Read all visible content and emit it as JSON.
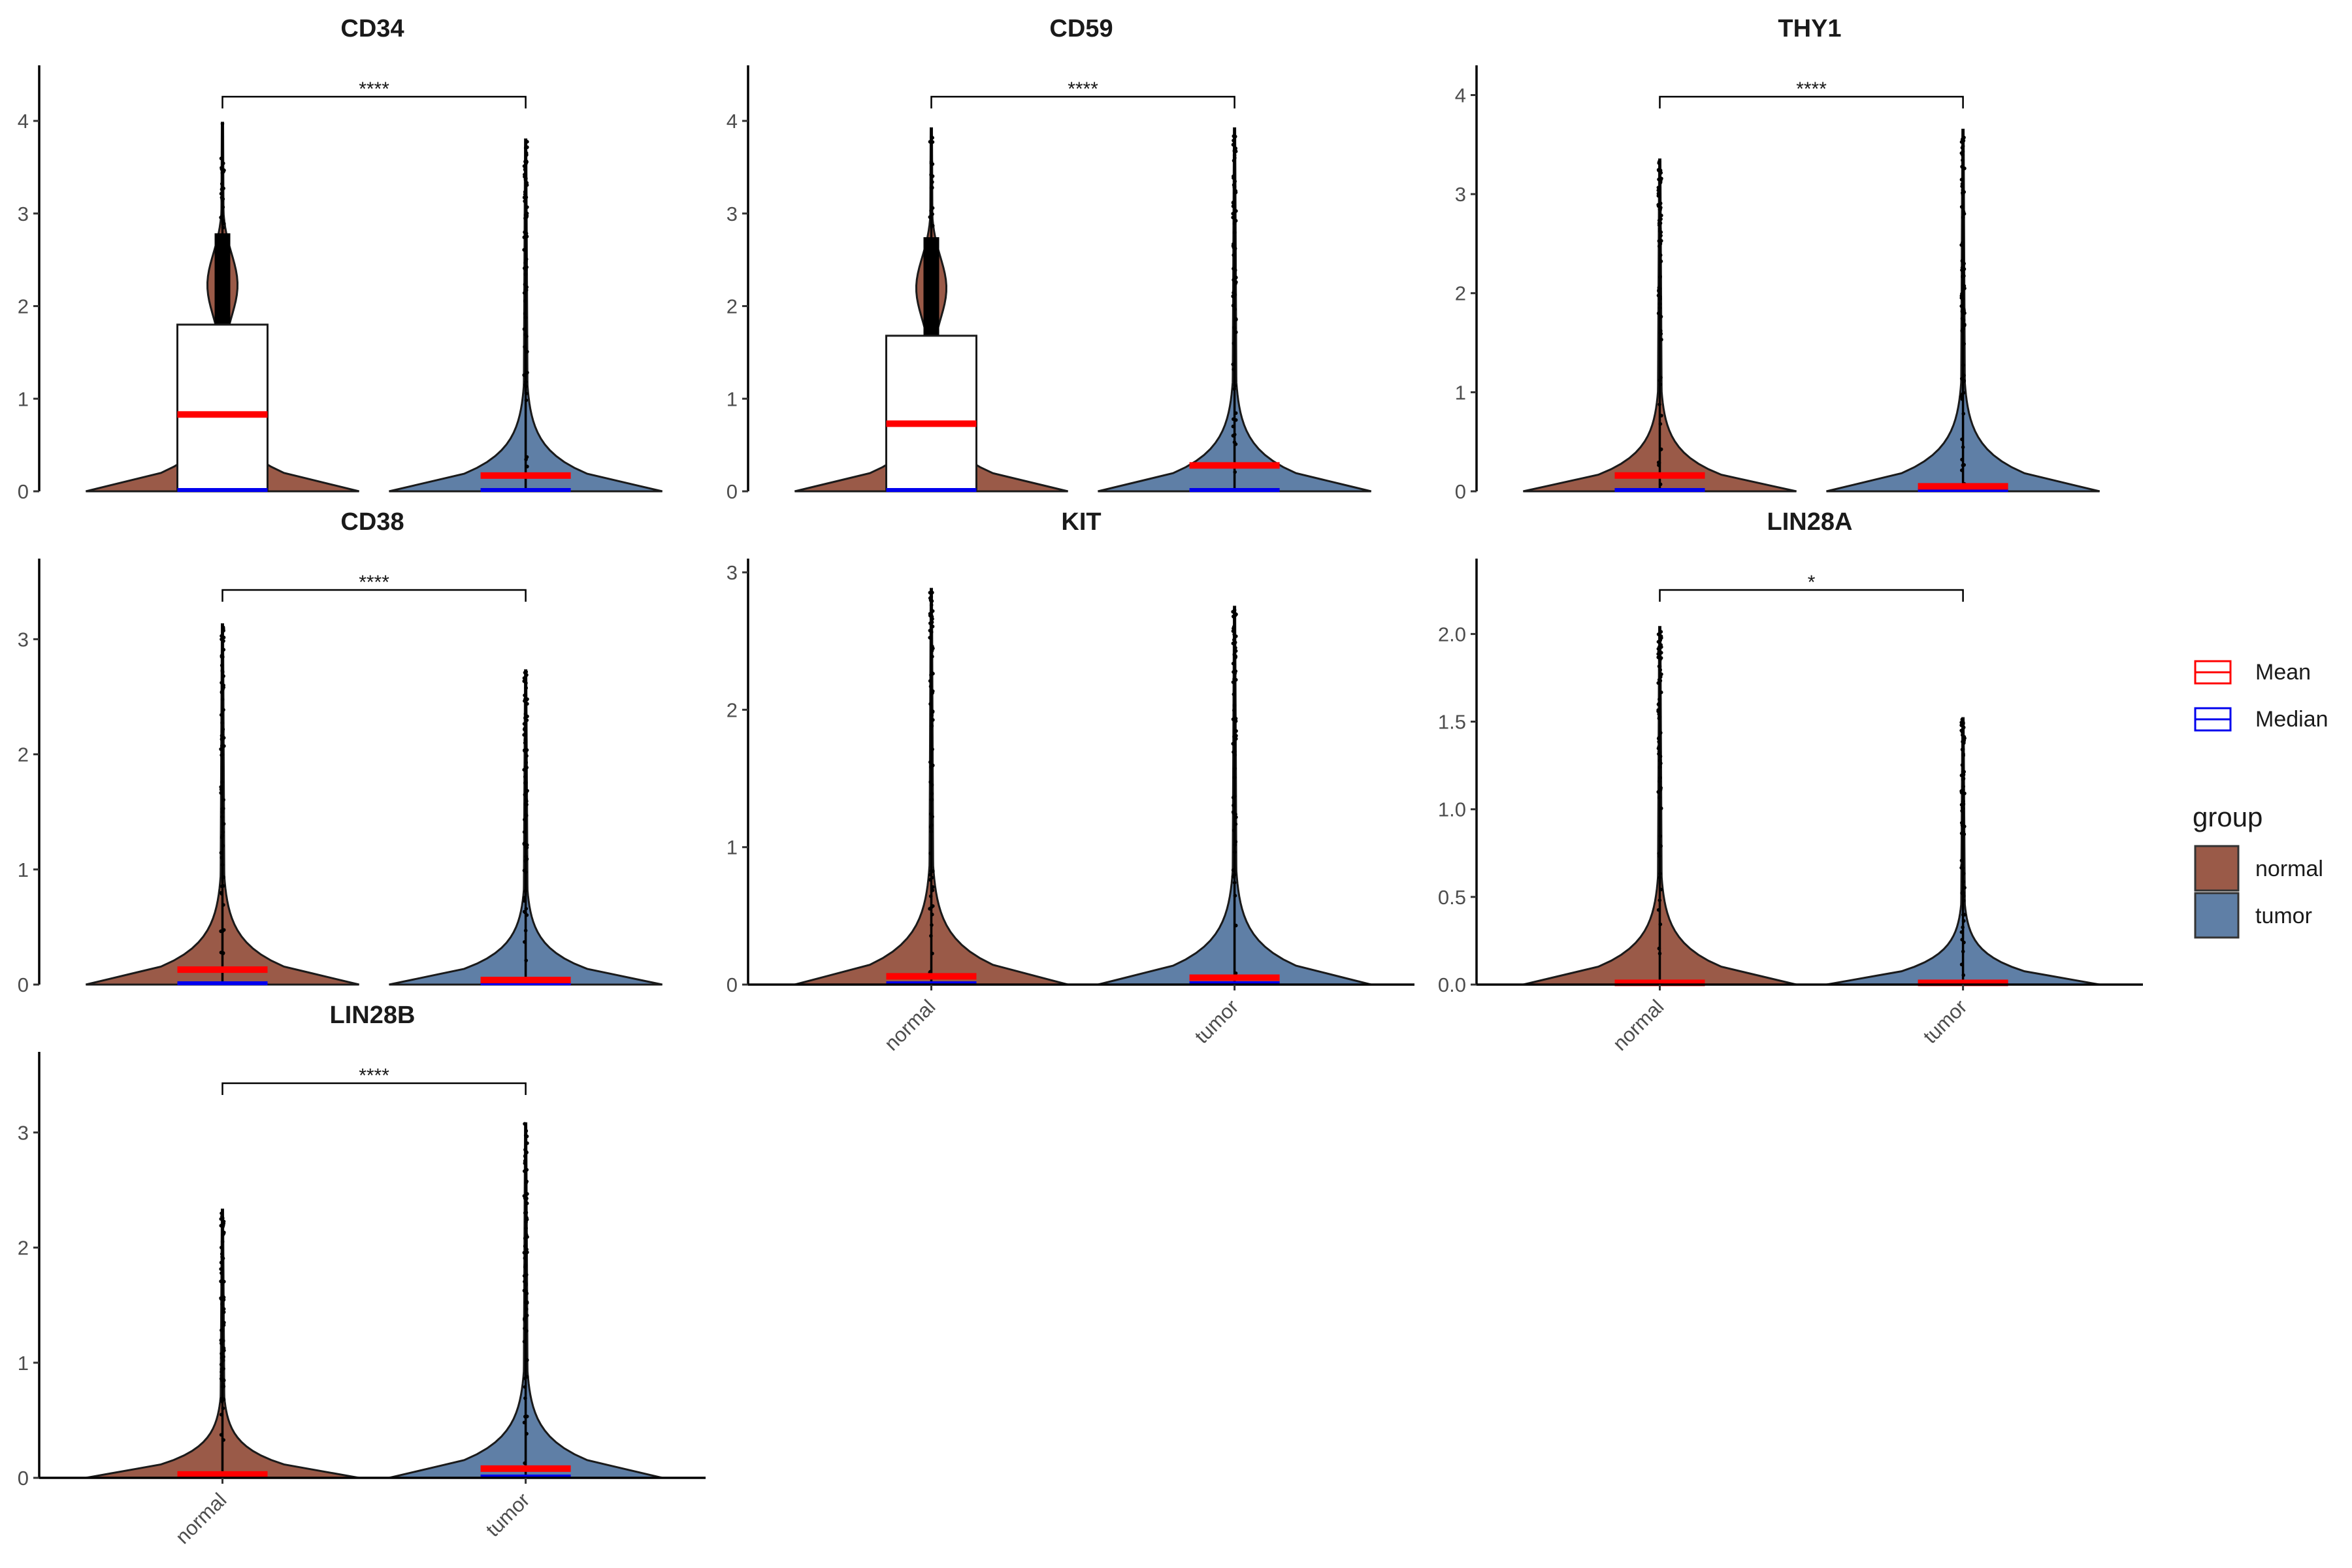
{
  "chart_data": {
    "type": "violin",
    "groups": [
      "normal",
      "tumor"
    ],
    "colors": {
      "normal": "#9a5a48",
      "tumor": "#5f7fa6",
      "mean": "#ff0000",
      "median": "#0000ee",
      "box_fill": "#ffffff"
    },
    "legend": {
      "stats": [
        {
          "label": "Mean",
          "color": "#ff0000"
        },
        {
          "label": "Median",
          "color": "#0000ee"
        }
      ],
      "group_title": "group",
      "groups": [
        {
          "label": "normal",
          "color": "#9a5a48"
        },
        {
          "label": "tumor",
          "color": "#5f7fa6"
        }
      ]
    },
    "panels": [
      {
        "title": "CD34",
        "ylim": [
          0,
          4.6
        ],
        "yticks": [
          "0",
          "1",
          "2",
          "3",
          "4"
        ],
        "yticks_values": [
          0,
          1,
          2,
          3,
          4
        ],
        "significance": "****",
        "show_xticks": false,
        "violins": [
          {
            "group": "normal",
            "max": 3.98,
            "mean": 0.83,
            "median": 0.0,
            "box": [
              0,
              1.8
            ]
          },
          {
            "group": "tumor",
            "max": 3.8,
            "mean": 0.17,
            "median": 0.0
          }
        ]
      },
      {
        "title": "CD59",
        "ylim": [
          0,
          4.6
        ],
        "yticks": [
          "0",
          "1",
          "2",
          "3",
          "4"
        ],
        "yticks_values": [
          0,
          1,
          2,
          3,
          4
        ],
        "significance": "****",
        "show_xticks": false,
        "violins": [
          {
            "group": "normal",
            "max": 3.92,
            "mean": 0.73,
            "median": 0.0,
            "box": [
              0,
              1.68
            ]
          },
          {
            "group": "tumor",
            "max": 3.92,
            "mean": 0.28,
            "median": 0.0
          }
        ]
      },
      {
        "title": "THY1",
        "ylim": [
          0,
          4.3
        ],
        "yticks": [
          "0",
          "1",
          "2",
          "3",
          "4"
        ],
        "yticks_values": [
          0,
          1,
          2,
          3,
          4
        ],
        "significance": "****",
        "show_xticks": false,
        "violins": [
          {
            "group": "normal",
            "max": 3.35,
            "mean": 0.16,
            "median": 0.0
          },
          {
            "group": "tumor",
            "max": 3.65,
            "mean": 0.05,
            "median": 0.0
          }
        ]
      },
      {
        "title": "CD38",
        "ylim": [
          0,
          3.7
        ],
        "yticks": [
          "0",
          "1",
          "2",
          "3"
        ],
        "yticks_values": [
          0,
          1,
          2,
          3
        ],
        "significance": "****",
        "show_xticks": false,
        "violins": [
          {
            "group": "normal",
            "max": 3.13,
            "mean": 0.13,
            "median": 0.0
          },
          {
            "group": "tumor",
            "max": 2.73,
            "mean": 0.04,
            "median": 0.0
          }
        ]
      },
      {
        "title": "KIT",
        "ylim": [
          0,
          3.1
        ],
        "yticks": [
          "0",
          "1",
          "2",
          "3"
        ],
        "yticks_values": [
          0,
          1,
          2,
          3
        ],
        "significance": "",
        "show_xticks": true,
        "violins": [
          {
            "group": "normal",
            "max": 2.88,
            "mean": 0.06,
            "median": 0.0
          },
          {
            "group": "tumor",
            "max": 2.75,
            "mean": 0.05,
            "median": 0.0
          }
        ]
      },
      {
        "title": "LIN28A",
        "ylim": [
          0,
          2.43
        ],
        "yticks": [
          "0.0",
          "0.5",
          "1.0",
          "1.5",
          "2.0"
        ],
        "yticks_values": [
          0,
          0.5,
          1,
          1.5,
          2
        ],
        "significance": "*",
        "show_xticks": true,
        "violins": [
          {
            "group": "normal",
            "max": 2.04,
            "mean": 0.01,
            "median": 0.0
          },
          {
            "group": "tumor",
            "max": 1.52,
            "mean": 0.01,
            "median": 0.0
          }
        ]
      },
      {
        "title": "LIN28B",
        "ylim": [
          0,
          3.7
        ],
        "yticks": [
          "0",
          "1",
          "2",
          "3"
        ],
        "yticks_values": [
          0,
          1,
          2,
          3
        ],
        "significance": "****",
        "show_xticks": true,
        "violins": [
          {
            "group": "normal",
            "max": 2.33,
            "mean": 0.03,
            "median": 0.0
          },
          {
            "group": "tumor",
            "max": 3.08,
            "mean": 0.08,
            "median": 0.0
          }
        ]
      }
    ]
  }
}
